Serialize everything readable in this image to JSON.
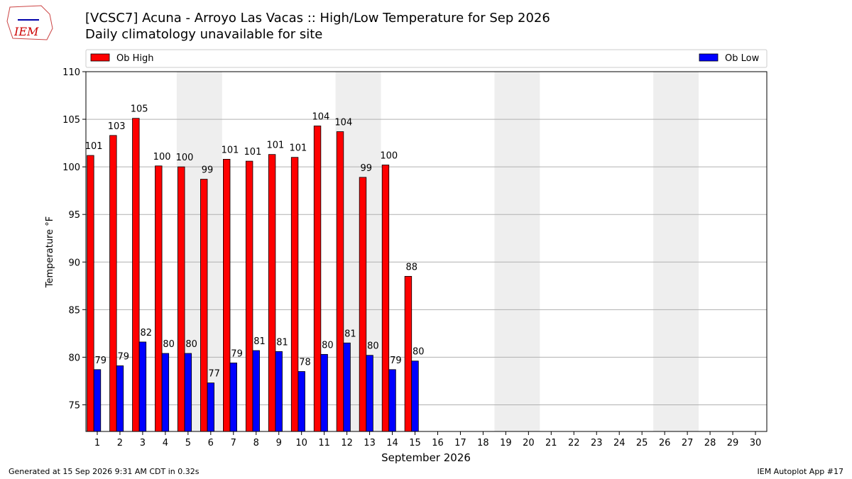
{
  "chart_data": {
    "type": "bar",
    "title": "[VCSC7] Acuna - Arroyo Las Vacas :: High/Low Temperature for Sep 2026",
    "subtitle": "Daily climatology unavailable for site",
    "x_label": "September 2026",
    "y_label": "Temperature °F",
    "logo": "IEM",
    "footer_left": "Generated at 15 Sep 2026 9:31 AM CDT in 0.32s",
    "footer_right": "IEM Autoplot App #17",
    "x": [
      1,
      2,
      3,
      4,
      5,
      6,
      7,
      8,
      9,
      10,
      11,
      12,
      13,
      14,
      15,
      16,
      17,
      18,
      19,
      20,
      21,
      22,
      23,
      24,
      25,
      26,
      27,
      28,
      29,
      30
    ],
    "series": [
      {
        "name": "Ob High",
        "color": "#ff0000",
        "values": [
          101.2,
          103.3,
          105.1,
          100.1,
          100.0,
          98.7,
          100.8,
          100.6,
          101.3,
          101.0,
          104.3,
          103.7,
          98.9,
          100.2,
          88.5,
          null,
          null,
          null,
          null,
          null,
          null,
          null,
          null,
          null,
          null,
          null,
          null,
          null,
          null,
          null
        ],
        "value_labels": [
          "101",
          "103",
          "105",
          "100",
          "100",
          "99",
          "101",
          "101",
          "101",
          "101",
          "104",
          "104",
          "99",
          "100",
          "88",
          null,
          null,
          null,
          null,
          null,
          null,
          null,
          null,
          null,
          null,
          null,
          null,
          null,
          null,
          null
        ]
      },
      {
        "name": "Ob Low",
        "color": "#0000ff",
        "values": [
          78.7,
          79.1,
          81.6,
          80.4,
          80.4,
          77.3,
          79.4,
          80.7,
          80.6,
          78.5,
          80.3,
          81.5,
          80.2,
          78.7,
          79.6,
          null,
          null,
          null,
          null,
          null,
          null,
          null,
          null,
          null,
          null,
          null,
          null,
          null,
          null,
          null
        ],
        "value_labels": [
          "79",
          "79",
          "82",
          "80",
          "80",
          "77",
          "79",
          "81",
          "81",
          "78",
          "80",
          "81",
          "80",
          "79",
          "80",
          null,
          null,
          null,
          null,
          null,
          null,
          null,
          null,
          null,
          null,
          null,
          null,
          null,
          null,
          null
        ]
      }
    ],
    "xlim": [
      0.5,
      30.5
    ],
    "xticks": [
      1,
      2,
      3,
      4,
      5,
      6,
      7,
      8,
      9,
      10,
      11,
      12,
      13,
      14,
      15,
      16,
      17,
      18,
      19,
      20,
      21,
      22,
      23,
      24,
      25,
      26,
      27,
      28,
      29,
      30
    ],
    "ylim": [
      72.2,
      110
    ],
    "yticks": [
      75,
      80,
      85,
      90,
      95,
      100,
      105,
      110
    ],
    "grid": true,
    "shaded_days": [
      [
        4.5,
        6.5
      ],
      [
        11.5,
        13.5
      ],
      [
        18.5,
        20.5
      ],
      [
        25.5,
        27.5
      ]
    ],
    "shade_color": "#eeeeee"
  }
}
